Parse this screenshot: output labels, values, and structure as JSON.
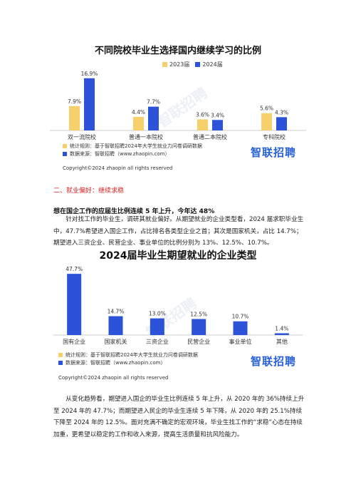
{
  "chart1": {
    "title": "不同院校毕业生选择国内继续学习的比例",
    "legend": [
      {
        "name": "2023届",
        "color": "#f5d06b"
      },
      {
        "name": "2024届",
        "color": "#2b52d8"
      }
    ],
    "source_lines": [
      "统计规则：基于智联招聘2024年大学生就业力问卷调研数据",
      "数据来源：智联招聘（www.zhaopin.com）"
    ],
    "logo": "智联招聘",
    "copyright": "Copyright©2024 zhaopin all rights reserved"
  },
  "section_heading": "二、就业偏好：继续求稳",
  "sub_heading": "想在国企工作的应届生比例连续 5 年上升，今年达 48%",
  "paragraph1": "针对找工作的毕业生，调研其就业偏好。从期望就业的企业类型看，2024 届求职毕业生中，47.7%希望进入国企工作，占比排名各类型企业之首；其次是国家机关，占比 14.7%；期望进入三资企业、民营企业、事业单位的比例分别为 13%、12.5%、10.7%。",
  "chart2": {
    "title": "2024届毕业生期望就业的企业类型",
    "bar_color": "#2b52d8",
    "source_lines": [
      "统计规则：基于智联招聘2024年大学生就业力问卷调研数据",
      "数据来源：智联招聘（www.zhaopin.com）"
    ],
    "logo": "智联招聘",
    "copyright": "Copyright©2024 zhaopin all rights reserved"
  },
  "paragraph2": "从变化趋势看，期望进入国企的毕业生比例连续 5 年上升，从 2020 年的 36%持续上升至 2024 年的 47.7%；而期望进入民企的毕业生连续 5 年下降，从 2020 年的 25.1%持续下降至 2024 年的 12.5%。面对充满不确定的宏观环境，毕业生找工作的“求稳”心态在持续加重，更希望以稳定的工作和收入来源，提高生活质量和抗风险能力。",
  "watermark": "智联招聘",
  "chart_data": [
    {
      "type": "bar",
      "title": "不同院校毕业生选择国内继续学习的比例",
      "categories": [
        "双一流院校",
        "普通一本院校",
        "普通二本院校",
        "专科院校"
      ],
      "series": [
        {
          "name": "2023届",
          "values": [
            7.9,
            4.4,
            3.6,
            5.6
          ],
          "labels": [
            "7.9%",
            "4.4%",
            "3.6%",
            "5.6%"
          ],
          "color": "#f5d06b"
        },
        {
          "name": "2024届",
          "values": [
            16.9,
            7.7,
            3.4,
            4.3
          ],
          "labels": [
            "16.9%",
            "7.7%",
            "3.4%",
            "4.3%"
          ],
          "color": "#2b52d8"
        }
      ],
      "ylim": [
        0,
        18
      ],
      "grid": false
    },
    {
      "type": "bar",
      "title": "2024届毕业生期望就业的企业类型",
      "categories": [
        "国有企业",
        "国家机关",
        "三资企业",
        "民营企业",
        "事业单位",
        "其他"
      ],
      "values": [
        47.7,
        14.7,
        13.0,
        12.5,
        10.7,
        1.4
      ],
      "labels": [
        "47.7%",
        "14.7%",
        "13.0%",
        "12.5%",
        "10.7%",
        "1.4%"
      ],
      "ylim": [
        0,
        50
      ],
      "grid": false
    }
  ]
}
